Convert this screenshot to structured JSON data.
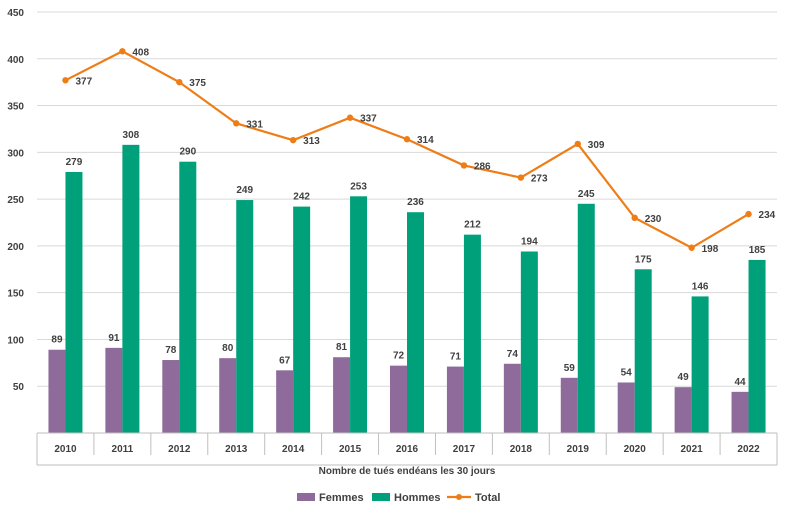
{
  "chart_data": {
    "type": "bar",
    "title": "",
    "xlabel": "Nombre de tués endéans les 30 jours",
    "ylabel": "",
    "ylim": [
      0,
      450
    ],
    "yticks": [
      50,
      100,
      150,
      200,
      250,
      300,
      350,
      400,
      450
    ],
    "grid": true,
    "legend_position": "bottom",
    "categories": [
      "2010",
      "2011",
      "2012",
      "2013",
      "2014",
      "2015",
      "2016",
      "2017",
      "2018",
      "2019",
      "2020",
      "2021",
      "2022"
    ],
    "series": [
      {
        "name": "Femmes",
        "type": "bar",
        "color": "#8E6B9B",
        "values": [
          89,
          91,
          78,
          80,
          67,
          81,
          72,
          71,
          74,
          59,
          54,
          49,
          44
        ]
      },
      {
        "name": "Hommes",
        "type": "bar",
        "color": "#00A07A",
        "values": [
          279,
          308,
          290,
          249,
          242,
          253,
          236,
          212,
          194,
          245,
          175,
          146,
          185
        ]
      },
      {
        "name": "Total",
        "type": "line",
        "color": "#EE7D17",
        "values": [
          377,
          408,
          375,
          331,
          313,
          337,
          314,
          286,
          273,
          309,
          230,
          198,
          234
        ]
      }
    ]
  }
}
